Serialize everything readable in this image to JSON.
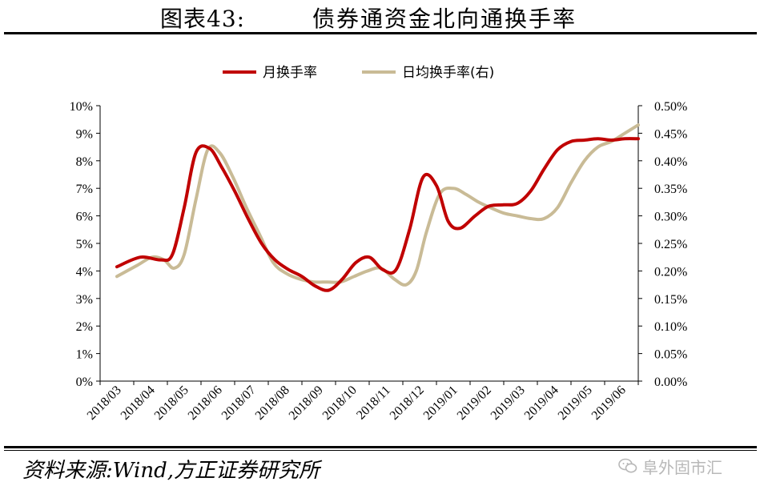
{
  "header": {
    "figure_label": "图表43:",
    "figure_title": "债券通资金北向通换手率"
  },
  "footer": {
    "source": "资料来源:Wind,方正证券研究所",
    "watermark": "阜外固市汇",
    "watermark_icon": "wechat-icon"
  },
  "chart_data": {
    "type": "line",
    "title": "",
    "xlabel": "",
    "ylabel": "",
    "x_tick_labels": [
      "2018/03",
      "2018/04",
      "2018/05",
      "2018/06",
      "2018/07",
      "2018/08",
      "2018/09",
      "2018/10",
      "2018/11",
      "2018/12",
      "2019/01",
      "2019/02",
      "2019/03",
      "2019/04",
      "2019/05",
      "2019/06"
    ],
    "y_left": {
      "ylim": [
        0,
        10
      ],
      "ticks": [
        "0%",
        "1%",
        "2%",
        "3%",
        "4%",
        "5%",
        "6%",
        "7%",
        "8%",
        "9%",
        "10%"
      ]
    },
    "y_right": {
      "ylim": [
        0,
        0.5
      ],
      "ticks": [
        "0.00%",
        "0.05%",
        "0.10%",
        "0.15%",
        "0.20%",
        "0.25%",
        "0.30%",
        "0.35%",
        "0.40%",
        "0.45%",
        "0.50%"
      ]
    },
    "legend_position": "top",
    "grid": false,
    "series": [
      {
        "name": "月换手率",
        "axis": "left",
        "color": "#c00000",
        "x": [
          0,
          0.7,
          1.3,
          1.65,
          2.0,
          2.35,
          2.75,
          3.1,
          3.5,
          3.9,
          4.3,
          4.7,
          5.1,
          5.5,
          5.9,
          6.3,
          6.7,
          7.1,
          7.5,
          7.9,
          8.3,
          8.7,
          9.1,
          9.5,
          9.85,
          10.2,
          10.65,
          11.05,
          11.5,
          11.9,
          12.3,
          12.7,
          13.1,
          13.5,
          13.9,
          14.3,
          14.7,
          15.1,
          15.5
        ],
        "values": [
          4.15,
          4.5,
          4.4,
          4.6,
          6.3,
          8.3,
          8.45,
          7.8,
          6.9,
          5.9,
          5.0,
          4.4,
          4.05,
          3.8,
          3.45,
          3.3,
          3.7,
          4.3,
          4.5,
          4.05,
          4.05,
          5.5,
          7.4,
          7.1,
          5.8,
          5.55,
          6.0,
          6.35,
          6.4,
          6.45,
          6.9,
          7.7,
          8.4,
          8.7,
          8.75,
          8.8,
          8.75,
          8.8,
          8.8
        ]
      },
      {
        "name": "日均换手率(右)",
        "axis": "right",
        "color": "#c9bb96",
        "x": [
          0,
          0.6,
          1.05,
          1.4,
          1.7,
          2.0,
          2.35,
          2.7,
          3.05,
          3.45,
          3.85,
          4.25,
          4.65,
          5.05,
          5.45,
          5.85,
          6.25,
          6.65,
          7.05,
          7.45,
          7.85,
          8.25,
          8.6,
          8.9,
          9.2,
          9.6,
          10.0,
          10.35,
          10.75,
          11.1,
          11.5,
          11.9,
          12.3,
          12.7,
          13.1,
          13.5,
          13.9,
          14.3,
          14.7,
          15.1,
          15.5
        ],
        "values": [
          0.19,
          0.21,
          0.225,
          0.22,
          0.205,
          0.23,
          0.33,
          0.42,
          0.415,
          0.37,
          0.315,
          0.265,
          0.215,
          0.195,
          0.185,
          0.18,
          0.18,
          0.18,
          0.19,
          0.2,
          0.205,
          0.185,
          0.175,
          0.2,
          0.27,
          0.34,
          0.35,
          0.34,
          0.325,
          0.315,
          0.305,
          0.3,
          0.295,
          0.295,
          0.315,
          0.36,
          0.4,
          0.425,
          0.435,
          0.45,
          0.465
        ]
      }
    ]
  }
}
